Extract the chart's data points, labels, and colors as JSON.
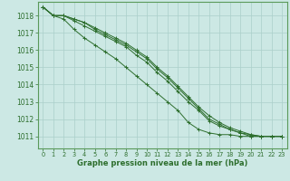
{
  "xlabel": "Graphe pression niveau de la mer (hPa)",
  "xlim": [
    -0.5,
    23.5
  ],
  "ylim": [
    1010.3,
    1018.8
  ],
  "yticks": [
    1011,
    1012,
    1013,
    1014,
    1015,
    1016,
    1017,
    1018
  ],
  "xticks": [
    0,
    1,
    2,
    3,
    4,
    5,
    6,
    7,
    8,
    9,
    10,
    11,
    12,
    13,
    14,
    15,
    16,
    17,
    18,
    19,
    20,
    21,
    22,
    23
  ],
  "background_color": "#cce8e4",
  "grid_color": "#aacfca",
  "line_color": "#2d6e2d",
  "border_color": "#5a9a5a",
  "series": [
    [
      1018.5,
      1018.0,
      1017.8,
      1017.2,
      1016.7,
      1016.3,
      1015.9,
      1015.5,
      1015.0,
      1014.5,
      1014.0,
      1013.5,
      1013.0,
      1012.5,
      1011.8,
      1011.4,
      1011.2,
      1011.1,
      1011.1,
      1011.0,
      1011.0,
      1011.0,
      1011.0,
      1011.0
    ],
    [
      1018.5,
      1018.0,
      1018.0,
      1017.7,
      1017.4,
      1017.1,
      1016.8,
      1016.5,
      1016.2,
      1015.7,
      1015.3,
      1014.7,
      1014.2,
      1013.6,
      1013.0,
      1012.5,
      1011.9,
      1011.6,
      1011.4,
      1011.2,
      1011.0,
      1011.0,
      1011.0,
      1011.0
    ],
    [
      1018.5,
      1018.0,
      1018.0,
      1017.8,
      1017.6,
      1017.2,
      1016.9,
      1016.6,
      1016.3,
      1015.9,
      1015.5,
      1014.9,
      1014.4,
      1013.8,
      1013.2,
      1012.6,
      1012.0,
      1011.7,
      1011.4,
      1011.2,
      1011.1,
      1011.0,
      1011.0,
      1011.0
    ],
    [
      1018.5,
      1018.0,
      1018.0,
      1017.8,
      1017.6,
      1017.3,
      1017.0,
      1016.7,
      1016.4,
      1016.0,
      1015.6,
      1015.0,
      1014.5,
      1013.9,
      1013.3,
      1012.7,
      1012.2,
      1011.8,
      1011.5,
      1011.3,
      1011.1,
      1011.0,
      1011.0,
      1011.0
    ]
  ]
}
